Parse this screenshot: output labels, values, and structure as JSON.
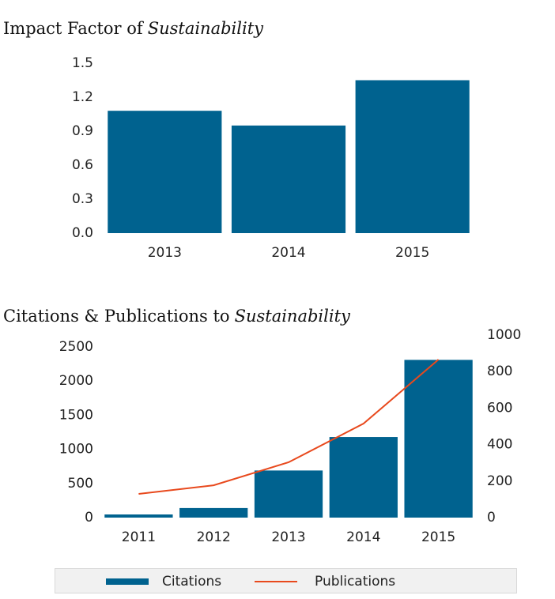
{
  "chart_data": [
    {
      "type": "bar",
      "title": [
        "Impact Factor of",
        "Sustainability"
      ],
      "categories": [
        "2013",
        "2014",
        "2015"
      ],
      "values": [
        1.08,
        0.95,
        1.35
      ],
      "color": "#00628f",
      "ylim": [
        0,
        1.5
      ],
      "yticks": [
        {
          "value": 0,
          "label": "0.0"
        },
        0.3,
        0.6,
        0.9,
        1.2,
        1.5
      ],
      "grid": false
    },
    {
      "type": "combo",
      "title": [
        "Citations & Publications to",
        "Sustainability"
      ],
      "categories": [
        "2011",
        "2012",
        "2013",
        "2014",
        "2015"
      ],
      "series": [
        {
          "name": "Citations",
          "type": "bar",
          "color": "#00628f",
          "values": [
            46,
            140,
            690,
            1180,
            2310
          ]
        },
        {
          "name": "Publications",
          "type": "line",
          "axis": "y2",
          "color": "#e8491d",
          "values": [
            130,
            177,
            303,
            515,
            866
          ]
        }
      ],
      "ylim": [
        0,
        2500
      ],
      "yticks": [
        0,
        500,
        1000,
        1500,
        2000,
        2500
      ],
      "y2lim": [
        0,
        1000
      ],
      "y2ticks": [
        0,
        200,
        400,
        600,
        800,
        1000
      ],
      "y2color": "#e0401a",
      "grid": false,
      "legend": "bottom"
    }
  ]
}
